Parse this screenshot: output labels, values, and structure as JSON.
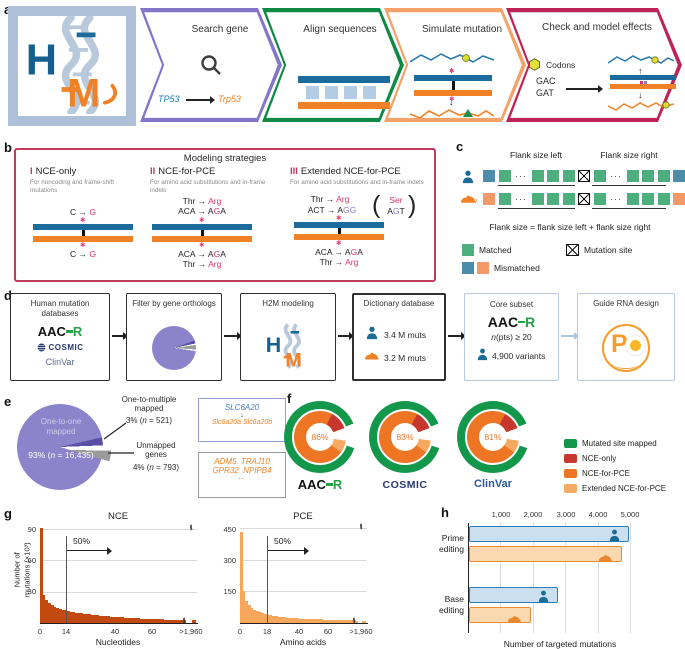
{
  "colors": {
    "human_blue": "#1b6b96",
    "mouse_orange": "#f08127",
    "matched_green": "#4fae7e",
    "mismatch_blue": "#4d8bab",
    "mismatch_orange": "#f2996a",
    "pink": "#d5336c",
    "violet": "#8a7cc9"
  },
  "panel_a": {
    "label": "a",
    "logo": {
      "h": "H",
      "m": "M"
    },
    "steps": [
      {
        "title": "Search gene",
        "color": "#8376c9",
        "gene_human": "TP53",
        "gene_mouse": "Trp53"
      },
      {
        "title": "Align sequences",
        "color": "#0f8a45"
      },
      {
        "title": "Simulate mutation",
        "color": "#f4a269"
      },
      {
        "title": "Check and model effects",
        "color": "#bd2355",
        "codons_label": "Codons",
        "codon_from": "GAC",
        "codon_to": "GAT"
      }
    ]
  },
  "panel_b": {
    "label": "b",
    "title": "Modeling strategies",
    "strategies": [
      {
        "num": "I",
        "name": "NCE-only",
        "desc": "For noncoding and frame-shift mutations",
        "top1": [
          [
            "C → ",
            "k"
          ],
          [
            "G",
            "pink"
          ]
        ],
        "bot1": [
          [
            "C → ",
            "k"
          ],
          [
            "G",
            "pink"
          ]
        ]
      },
      {
        "num": "II",
        "name": "NCE-for-PCE",
        "desc": "For amino acid substitutions and in-frame indels",
        "top1": [
          [
            "Thr → ",
            "k"
          ],
          [
            "Arg",
            "pink"
          ]
        ],
        "top2": [
          [
            "ACA → A",
            "k"
          ],
          [
            "G",
            "pink"
          ],
          [
            "A",
            "k"
          ]
        ],
        "bot1": [
          [
            "ACA → A",
            "k"
          ],
          [
            "G",
            "pink"
          ],
          [
            "A",
            "k"
          ]
        ],
        "bot2": [
          [
            "Thr → ",
            "k"
          ],
          [
            "Arg",
            "pink"
          ]
        ]
      },
      {
        "num": "III",
        "name": "Extended NCE-for-PCE",
        "desc": "For amino acid substitutions and in-frame indels",
        "top1": [
          [
            "Thr → ",
            "k"
          ],
          [
            "Arg",
            "pink"
          ]
        ],
        "top2": [
          [
            "ACT → A",
            "k"
          ],
          [
            "GG",
            "violet"
          ]
        ],
        "alt_aa": [
          [
            "Ser",
            "pink"
          ]
        ],
        "alt_codon": [
          [
            "A",
            "k"
          ],
          [
            "G",
            "violet"
          ],
          [
            "T",
            "k"
          ]
        ],
        "bot1": [
          [
            "ACA → A",
            "k"
          ],
          [
            "G",
            "pink"
          ],
          [
            "A",
            "k"
          ]
        ],
        "bot2": [
          [
            "Thr → ",
            "k"
          ],
          [
            "Arg",
            "pink"
          ]
        ]
      }
    ]
  },
  "panel_c": {
    "label": "c",
    "flank_left": "Flank size left",
    "flank_right": "Flank size right",
    "formula": "Flank size = flank size left + flank size right",
    "pattern": [
      "mismatch",
      "match",
      "dots",
      "match",
      "match",
      "match",
      "site",
      "match",
      "dots",
      "match",
      "match",
      "match",
      "mismatch"
    ],
    "legend": {
      "matched": "Matched",
      "mutation_site": "Mutation site",
      "mismatched": "Mismatched"
    }
  },
  "panel_d": {
    "label": "d",
    "box1": {
      "title": "Human mutation databases",
      "logo_aacr": "AAC",
      "logo_aacr_r": "R",
      "logo_cosmic": "COSMIC",
      "logo_clinvar": "ClinVar"
    },
    "box2": {
      "title": "Filter by gene orthologs"
    },
    "box3": {
      "title": "H2M modeling"
    },
    "box4": {
      "title": "Dictionary database",
      "human_count": "3.4 M muts",
      "mouse_count": "3.2 M muts"
    },
    "box5": {
      "title": "Core subset",
      "logo_aacr": "AAC",
      "logo_aacr_r": "R",
      "npts": [
        [
          "n",
          "i"
        ],
        [
          "(pts) ≥ 20",
          "k"
        ]
      ],
      "variants": "4,900 variants"
    },
    "box6": {
      "title": "Guide RNA design",
      "logo_letter": "P"
    }
  },
  "panel_e": {
    "label": "e",
    "pie_label1": "One-to-one",
    "pie_label2": "mapped",
    "pie_value": [
      [
        "93% (",
        "k"
      ],
      [
        "n",
        "i"
      ],
      [
        " = 16,435)",
        "k"
      ]
    ],
    "callout1_l1": "One-to-multiple",
    "callout1_l2": "mapped",
    "callout1_v": [
      [
        "3% (",
        "k"
      ],
      [
        "n",
        "i"
      ],
      [
        " = 521)",
        "k"
      ]
    ],
    "callout2_l1": "Unmapped",
    "callout2_l2": "genes",
    "callout2_v": [
      [
        "4% (",
        "k"
      ],
      [
        "n",
        "i"
      ],
      [
        " = 793)",
        "k"
      ]
    ],
    "box1": {
      "human_gene": "SLC6A20",
      "mouse_genes": "Slc6a20a Slc6a20b"
    },
    "box2": {
      "line1": "ADM5  TRAJ10",
      "line2": "GPR32  NPIPB4",
      "line3": "..."
    }
  },
  "panel_f": {
    "label": "f",
    "logos": {
      "aacr": "AAC",
      "aacr_r": "R",
      "cosmic": "COSMIC",
      "clinvar": "ClinVar"
    }
  },
  "panel_g": {
    "label": "g"
  },
  "panel_h": {
    "label": "h"
  },
  "chart_data": [
    {
      "id": "gene_ortholog_pie",
      "type": "pie",
      "slices": [
        {
          "label": "One-to-one mapped",
          "pct": 93,
          "n": "16,435",
          "color": "#8b84cb"
        },
        {
          "label": "One-to-multiple mapped",
          "pct": 3,
          "n": "521",
          "color": "#5a4fa5"
        },
        {
          "label": "Unmapped genes",
          "pct": 4,
          "n": "793",
          "color": "#9b9b9b",
          "exploded": true
        }
      ]
    },
    {
      "id": "mapping_donuts",
      "type": "pie",
      "subtype": "donut",
      "items": [
        {
          "database": "AACR",
          "modeled_pct": 86
        },
        {
          "database": "COSMIC",
          "modeled_pct": 83
        },
        {
          "database": "ClinVar",
          "modeled_pct": 81
        }
      ],
      "ring_colors": {
        "mapped": "#13984b",
        "nce_only": "#c8372d",
        "nce_for_pce": "#ed7524",
        "extended": "#f6aa61",
        "gap": "#ffffff"
      },
      "outer_ring": [
        [
          "mapped",
          0,
          68
        ],
        [
          "gap",
          68,
          108
        ],
        [
          "mapped",
          108,
          360
        ]
      ],
      "inner_ring": [
        [
          "nce_for_pce",
          0,
          28
        ],
        [
          "nce_only",
          28,
          70
        ],
        [
          "gap",
          70,
          98
        ],
        [
          "extended",
          98,
          126
        ],
        [
          "nce_for_pce",
          126,
          360
        ]
      ],
      "legend": [
        "Mutated site mapped",
        "NCE-only",
        "NCE-for-PCE",
        "Extended NCE-for-PCE"
      ]
    },
    {
      "id": "nce_hist",
      "type": "bar",
      "title": "NCE",
      "ylabel_line1": "Number of",
      "ylabel_line2": "mutations (×10³)",
      "xlabel": "Nucleotides",
      "yticks": [
        "30",
        "60",
        "90"
      ],
      "ymax": 95,
      "xtick_labels": [
        "0",
        "14",
        "40",
        "60",
        ">1,960"
      ],
      "median_label": "50%",
      "median_x": 14,
      "color": "#c2490f",
      "values": [
        91,
        27,
        22,
        19,
        17,
        15.5,
        14.5,
        13.5,
        12.8,
        12.2,
        11.6,
        11,
        10.5,
        10,
        9.6,
        9.2,
        8.8,
        8.5,
        8.2,
        7.9,
        7.6,
        7.3,
        7,
        6.8,
        6.6,
        6.4,
        6.2,
        6,
        5.8,
        5.6,
        5.4,
        5.2,
        5,
        4.9,
        4.7,
        4.6,
        4.4,
        4.3,
        4.2,
        4,
        3.9,
        3.8,
        3.7,
        3.6,
        3.5,
        3.4,
        3.3,
        3.2,
        3.1,
        3,
        2.9,
        2.9,
        2.8,
        2.8
      ],
      "tail_value": 2.5
    },
    {
      "id": "pce_hist",
      "type": "bar",
      "title": "PCE",
      "xlabel": "Amino acids",
      "yticks": [
        "150",
        "300",
        "450"
      ],
      "ymax": 470,
      "xtick_labels": [
        "0",
        "18",
        "40",
        "60",
        ">1,960"
      ],
      "median_label": "50%",
      "median_x": 18,
      "color": "#f6a75c",
      "values": [
        430,
        150,
        105,
        85,
        72,
        63,
        56,
        50,
        46,
        42,
        39,
        36,
        34,
        32,
        30,
        28,
        27,
        26,
        25,
        24,
        23,
        22,
        21,
        20.5,
        20,
        19.5,
        19,
        18.5,
        18,
        17.5,
        17,
        16.5,
        16,
        15.5,
        15,
        14.5,
        14,
        13.5,
        13,
        13,
        12.5,
        12,
        12,
        11.5
      ],
      "tail_value": 10
    },
    {
      "id": "targeted_mutations",
      "type": "bar",
      "orientation": "horizontal",
      "xlabel": "Number of targeted mutations",
      "xticks": [
        "1,000",
        "2,000",
        "3,000",
        "4,000",
        "5,000"
      ],
      "xmax": 5000,
      "groups": [
        {
          "label1": "Prime",
          "label2": "editing",
          "human": 4950,
          "mouse": 4720
        },
        {
          "label1": "Base",
          "label2": "editing",
          "human": 2750,
          "mouse": 1900
        }
      ]
    }
  ]
}
